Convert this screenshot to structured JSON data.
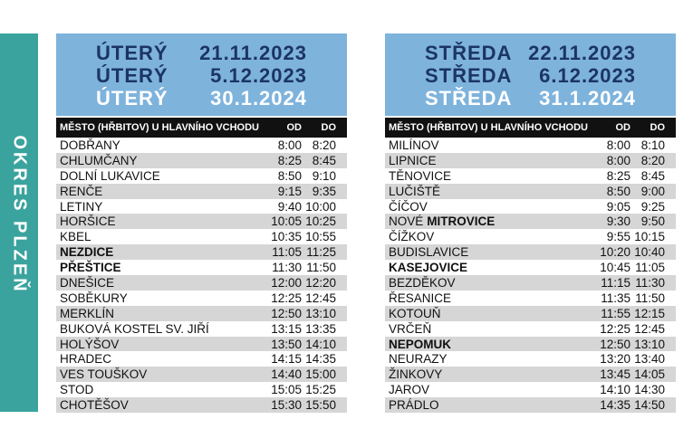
{
  "side_label": "OKRES PLZEŇ",
  "tables": [
    {
      "days": [
        {
          "day": "ÚTERÝ",
          "date": "21.11.2023"
        },
        {
          "day": "ÚTERÝ",
          "date": "5.12.2023"
        },
        {
          "day": "ÚTERÝ",
          "date": "30.1.2024"
        }
      ],
      "columns": [
        "MĚSTO (HŘBITOV) U HLAVNÍHO VCHODU",
        "OD",
        "DO"
      ],
      "rows": [
        {
          "town": "DOBŘANY",
          "from": "8:00",
          "to": "8:20"
        },
        {
          "town": "CHLUMČANY",
          "from": "8:25",
          "to": "8:45"
        },
        {
          "town": "DOLNÍ LUKAVICE",
          "from": "8:50",
          "to": "9:10"
        },
        {
          "town": "RENČE",
          "from": "9:15",
          "to": "9:35"
        },
        {
          "town": "LETINY",
          "from": "9:40",
          "to": "10:00"
        },
        {
          "town": "HORŠICE",
          "from": "10:05",
          "to": "10:25"
        },
        {
          "town": "KBEL",
          "from": "10:35",
          "to": "10:55"
        },
        {
          "town": "NEZDICE",
          "from": "11:05",
          "to": "11:25",
          "bold": true
        },
        {
          "town": "PŘEŠTICE",
          "from": "11:30",
          "to": "11:50",
          "bold": true
        },
        {
          "town": "DNEŠICE",
          "from": "12:00",
          "to": "12:20"
        },
        {
          "town": "SOBĚKURY",
          "from": "12:25",
          "to": "12:45"
        },
        {
          "town": "MERKLÍN",
          "from": "12:50",
          "to": "13:10"
        },
        {
          "town": "BUKOVÁ KOSTEL SV. JIŘÍ",
          "from": "13:15",
          "to": "13:35"
        },
        {
          "town": "HOLÝŠOV",
          "from": "13:50",
          "to": "14:10"
        },
        {
          "town": "HRADEC",
          "from": "14:15",
          "to": "14:35"
        },
        {
          "town": "VES TOUŠKOV",
          "from": "14:40",
          "to": "15:00"
        },
        {
          "town": "STOD",
          "from": "15:05",
          "to": "15:25"
        },
        {
          "town": "CHOTĚŠOV",
          "from": "15:30",
          "to": "15:50"
        }
      ]
    },
    {
      "days": [
        {
          "day": "STŘEDA",
          "date": "22.11.2023"
        },
        {
          "day": "STŘEDA",
          "date": "6.12.2023"
        },
        {
          "day": "STŘEDA",
          "date": "31.1.2024"
        }
      ],
      "columns": [
        "MĚSTO (HŘBITOV) U HLAVNÍHO VCHODU",
        "OD",
        "DO"
      ],
      "rows": [
        {
          "town": "MILÍNOV",
          "from": "8:00",
          "to": "8:10"
        },
        {
          "town": "LIPNICE",
          "from": "8:00",
          "to": "8:20"
        },
        {
          "town": "TĚNOVICE",
          "from": "8:25",
          "to": "8:45"
        },
        {
          "town": "LUČIŠTĚ",
          "from": "8:50",
          "to": "9:00"
        },
        {
          "town": "ČÍČOV",
          "from": "9:05",
          "to": "9:25"
        },
        {
          "town": [
            {
              "text": "NOVÉ"
            },
            {
              "text": "MITROVICE",
              "bold": true
            }
          ],
          "from": "9:30",
          "to": "9:50"
        },
        {
          "town": "ČÍŽKOV",
          "from": "9:55",
          "to": "10:15"
        },
        {
          "town": "BUDISLAVICE",
          "from": "10:20",
          "to": "10:40"
        },
        {
          "town": "KASEJOVICE",
          "from": "10:45",
          "to": "11:05",
          "bold": true
        },
        {
          "town": "BEZDĚKOV",
          "from": "11:15",
          "to": "11:30"
        },
        {
          "town": "ŘESANICE",
          "from": "11:35",
          "to": "11:50"
        },
        {
          "town": "KOTOUŇ",
          "from": "11:55",
          "to": "12:15"
        },
        {
          "town": "VRČEŇ",
          "from": "12:25",
          "to": "12:45"
        },
        {
          "town": "NEPOMUK",
          "from": "12:50",
          "to": "13:10",
          "bold": true
        },
        {
          "town": "NEURAZY",
          "from": "13:20",
          "to": "13:40"
        },
        {
          "town": "ŽINKOVY",
          "from": "13:45",
          "to": "14:05"
        },
        {
          "town": "JAROV",
          "from": "14:10",
          "to": "14:30"
        },
        {
          "town": "PRÁDLO",
          "from": "14:35",
          "to": "14:50"
        }
      ]
    }
  ]
}
